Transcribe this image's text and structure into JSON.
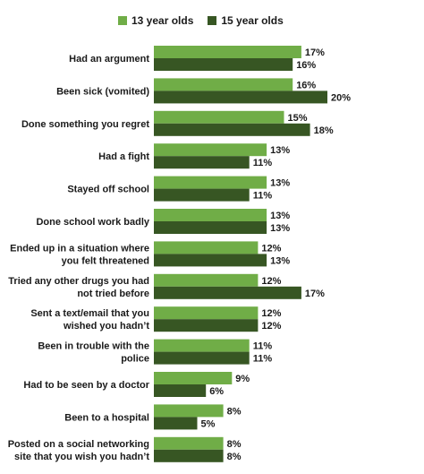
{
  "chart_data": {
    "type": "bar",
    "orientation": "horizontal",
    "categories": [
      [
        "Had an argument"
      ],
      [
        "Been sick (vomited)"
      ],
      [
        "Done something you regret"
      ],
      [
        "Had a fight"
      ],
      [
        "Stayed off school"
      ],
      [
        "Done school work badly"
      ],
      [
        "Ended up in a situation where",
        "you felt threatened"
      ],
      [
        "Tried any other drugs you had",
        "not tried before"
      ],
      [
        "Sent a text/email that you",
        "wished you hadn’t"
      ],
      [
        "Been in trouble  with the",
        "police"
      ],
      [
        "Had to be seen by a doctor"
      ],
      [
        "Been to a hospital"
      ],
      [
        "Posted on a social networking",
        "site that you wish you hadn’t"
      ]
    ],
    "series": [
      {
        "name": "13 year olds",
        "color": "#70AD47",
        "values": [
          17,
          16,
          15,
          13,
          13,
          13,
          12,
          12,
          12,
          11,
          9,
          8,
          8
        ]
      },
      {
        "name": "15 year olds",
        "color": "#375623",
        "values": [
          16,
          20,
          18,
          11,
          11,
          13,
          13,
          17,
          12,
          11,
          6,
          5,
          8
        ]
      }
    ],
    "value_suffix": "%",
    "legend_position": "top",
    "grid": false
  }
}
